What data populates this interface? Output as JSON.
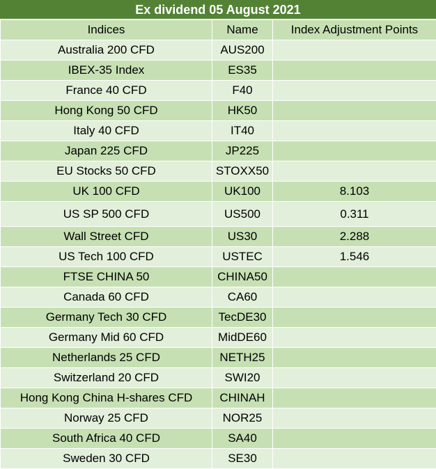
{
  "title": "Ex dividend 05 August 2021",
  "headers": {
    "indices": "Indices",
    "name": "Name",
    "adjustment": "Index Adjustment Points"
  },
  "rows": [
    {
      "index": "Australia 200 CFD",
      "name": "AUS200",
      "points": ""
    },
    {
      "index": "IBEX-35 Index",
      "name": "ES35",
      "points": ""
    },
    {
      "index": "France 40 CFD",
      "name": "F40",
      "points": ""
    },
    {
      "index": "Hong Kong 50 CFD",
      "name": "HK50",
      "points": ""
    },
    {
      "index": "Italy 40 CFD",
      "name": "IT40",
      "points": ""
    },
    {
      "index": "Japan 225 CFD",
      "name": "JP225",
      "points": ""
    },
    {
      "index": "EU Stocks 50 CFD",
      "name": "STOXX50",
      "points": ""
    },
    {
      "index": "UK 100 CFD",
      "name": "UK100",
      "points": "8.103"
    },
    {
      "index": "US SP 500 CFD",
      "name": "US500",
      "points": "0.311"
    },
    {
      "index": "Wall Street CFD",
      "name": "US30",
      "points": "2.288"
    },
    {
      "index": "US Tech 100 CFD",
      "name": "USTEC",
      "points": "1.546"
    },
    {
      "index": "FTSE CHINA 50",
      "name": "CHINA50",
      "points": ""
    },
    {
      "index": "Canada 60 CFD",
      "name": "CA60",
      "points": ""
    },
    {
      "index": "Germany Tech 30 CFD",
      "name": "TecDE30",
      "points": ""
    },
    {
      "index": "Germany Mid 60 CFD",
      "name": "MidDE60",
      "points": ""
    },
    {
      "index": "Netherlands 25 CFD",
      "name": "NETH25",
      "points": ""
    },
    {
      "index": "Switzerland 20 CFD",
      "name": "SWI20",
      "points": ""
    },
    {
      "index": "Hong Kong China H-shares CFD",
      "name": "CHINAH",
      "points": ""
    },
    {
      "index": "Norway 25 CFD",
      "name": "NOR25",
      "points": ""
    },
    {
      "index": "South Africa 40 CFD",
      "name": "SA40",
      "points": ""
    },
    {
      "index": "Sweden 30 CFD",
      "name": "SE30",
      "points": ""
    }
  ],
  "colors": {
    "title_bg": "#548235",
    "row_dark": "#c6e0b4",
    "row_light": "#e2efda"
  }
}
